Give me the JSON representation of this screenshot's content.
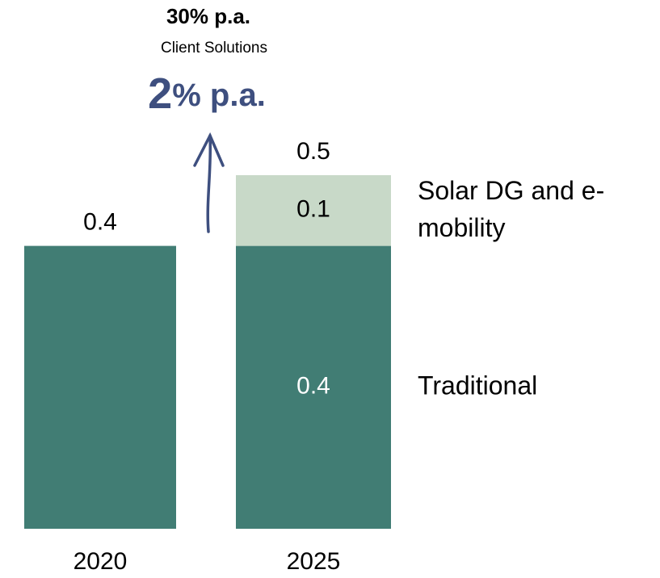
{
  "chart_data": {
    "type": "stacked_bar",
    "categories": [
      "2020",
      "2025"
    ],
    "series": [
      {
        "name": "Traditional",
        "color": "#417d74",
        "values": [
          0.4,
          0.4
        ]
      },
      {
        "name": "Solar DG and e-mobility",
        "color": "#c8d9c8",
        "values": [
          null,
          0.1
        ]
      }
    ],
    "totals": [
      0.4,
      0.5
    ],
    "annotations": [
      "30% p.a.",
      "Client Solutions",
      "2% p.a."
    ]
  }
}
